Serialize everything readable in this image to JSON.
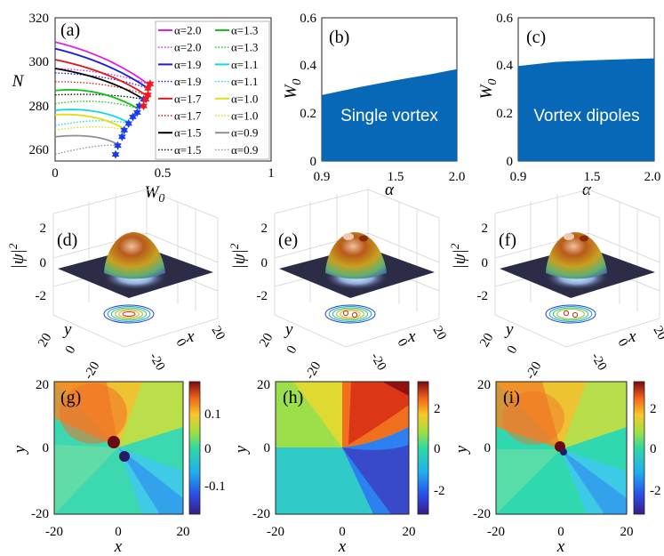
{
  "chart_data": [
    {
      "panel": "(a)",
      "type": "line",
      "xlabel": "W",
      "xlabel_sub": "0",
      "ylabel": "N",
      "xlim": [
        0,
        1
      ],
      "ylim": [
        255,
        320
      ],
      "xticks": [
        "0",
        "0.5",
        "1"
      ],
      "yticks": [
        "260",
        "280",
        "300",
        "320"
      ],
      "legend_left": [
        "α=2.0",
        "α=2.0",
        "α=1.9",
        "α=1.9",
        "α=1.7",
        "α=1.7",
        "α=1.5",
        "α=1.5"
      ],
      "legend_right": [
        "α=1.3",
        "α=1.3",
        "α=1.1",
        "α=1.1",
        "α=1.0",
        "α=1.0",
        "α=0.9",
        "α=0.9"
      ],
      "series": [
        {
          "name": "α=2.0",
          "style": "solid",
          "color": "#e01ee0",
          "x": [
            0,
            0.25,
            0.43
          ],
          "y": [
            309,
            303,
            290
          ]
        },
        {
          "name": "α=2.0",
          "style": "dotted",
          "color": "#e01ee0",
          "x": [
            0,
            0.25,
            0.43
          ],
          "y": [
            297,
            296,
            290
          ]
        },
        {
          "name": "α=1.9",
          "style": "solid",
          "color": "#1a1ae6",
          "x": [
            0,
            0.25,
            0.43
          ],
          "y": [
            306,
            300,
            288
          ]
        },
        {
          "name": "α=1.9",
          "style": "dotted",
          "color": "#1a1ae6",
          "x": [
            0,
            0.25,
            0.43
          ],
          "y": [
            295,
            294,
            288
          ]
        },
        {
          "name": "α=1.7",
          "style": "solid",
          "color": "#e01a1a",
          "x": [
            0,
            0.25,
            0.42
          ],
          "y": [
            301,
            296,
            285
          ]
        },
        {
          "name": "α=1.7",
          "style": "dotted",
          "color": "#e01a1a",
          "x": [
            0,
            0.25,
            0.42
          ],
          "y": [
            291,
            291,
            285
          ]
        },
        {
          "name": "α=1.5",
          "style": "solid",
          "color": "#000000",
          "x": [
            0,
            0.25,
            0.41
          ],
          "y": [
            297,
            293,
            283
          ]
        },
        {
          "name": "α=1.5",
          "style": "dotted",
          "color": "#000000",
          "x": [
            0,
            0.25,
            0.41
          ],
          "y": [
            285,
            286,
            283
          ]
        },
        {
          "name": "α=1.3",
          "style": "solid",
          "color": "#16c016",
          "x": [
            0,
            0.2,
            0.38
          ],
          "y": [
            287,
            289,
            279
          ]
        },
        {
          "name": "α=1.3",
          "style": "dotted",
          "color": "#16c016",
          "x": [
            0,
            0.2,
            0.38
          ],
          "y": [
            281,
            284,
            279
          ]
        },
        {
          "name": "α=1.1",
          "style": "solid",
          "color": "#10d8e8",
          "x": [
            0,
            0.2,
            0.35
          ],
          "y": [
            278,
            280,
            272
          ]
        },
        {
          "name": "α=1.1",
          "style": "dotted",
          "color": "#10d8e8",
          "x": [
            0,
            0.2,
            0.35
          ],
          "y": [
            271,
            275,
            272
          ]
        },
        {
          "name": "α=1.0",
          "style": "solid",
          "color": "#e0e010",
          "x": [
            0,
            0.2,
            0.33
          ],
          "y": [
            276,
            277,
            269
          ]
        },
        {
          "name": "α=1.0",
          "style": "dotted",
          "color": "#e0e010",
          "x": [
            0,
            0.2,
            0.33
          ],
          "y": [
            269,
            272,
            269
          ]
        },
        {
          "name": "α=0.9",
          "style": "solid",
          "color": "#909090",
          "x": [
            0,
            0.2,
            0.3
          ],
          "y": [
            266,
            268,
            262
          ]
        },
        {
          "name": "α=0.9",
          "style": "dotted",
          "color": "#909090",
          "x": [
            0,
            0.2,
            0.3
          ],
          "y": [
            258,
            263,
            262
          ]
        }
      ],
      "markers": {
        "blue_stars": {
          "x": [
            0.28,
            0.29,
            0.31,
            0.32,
            0.34,
            0.36,
            0.38,
            0.39,
            0.41
          ],
          "y": [
            258,
            262,
            266,
            269,
            272,
            275,
            277,
            280,
            283
          ]
        },
        "red_stars": {
          "x": [
            0.41,
            0.42,
            0.43,
            0.43,
            0.44
          ],
          "y": [
            280,
            283,
            285,
            288,
            290
          ]
        }
      },
      "colors": {
        "blue_star": "#1a3cf0",
        "red_star": "#f01a1a"
      }
    },
    {
      "panel": "(b)",
      "type": "area",
      "annotation": "Single vortex",
      "xlabel": "α",
      "ylabel": "W",
      "ylabel_sub": "0",
      "xlim": [
        0.9,
        2.0
      ],
      "ylim": [
        0,
        0.6
      ],
      "xticks": [
        "0.9",
        "1.5",
        "2.0"
      ],
      "yticks": [
        "0",
        "0.2",
        "0.4",
        "0.6"
      ],
      "x": [
        0.9,
        1.2,
        1.5,
        1.8,
        2.0
      ],
      "values": [
        0.276,
        0.309,
        0.338,
        0.365,
        0.385
      ],
      "color": "#0868b8"
    },
    {
      "panel": "(c)",
      "type": "area",
      "annotation": "Vortex dipoles",
      "xlabel": "α",
      "ylabel": "W",
      "ylabel_sub": "0",
      "xlim": [
        0.9,
        2.0
      ],
      "ylim": [
        0,
        0.6
      ],
      "xticks": [
        "0.9",
        "1.5",
        "2.0"
      ],
      "yticks": [
        "0",
        "0.2",
        "0.4",
        "0.6"
      ],
      "x": [
        0.9,
        1.2,
        1.5,
        1.8,
        2.0
      ],
      "values": [
        0.398,
        0.415,
        0.422,
        0.427,
        0.43
      ],
      "color": "#0868b8"
    },
    {
      "panel": "(d)",
      "type": "surface3d",
      "zlabel": "|ψ|",
      "zlabel_sup": "2",
      "xlabel": "x",
      "ylabel": "y",
      "zticks": [
        "2",
        "0",
        "-2"
      ],
      "xticks": [
        "20",
        "0",
        "-20"
      ],
      "yticks": [
        "20",
        "0",
        "-20"
      ],
      "contour_rings": 6
    },
    {
      "panel": "(e)",
      "type": "surface3d",
      "zlabel": "|ψ|",
      "zlabel_sup": "2",
      "xlabel": "x",
      "ylabel": "y",
      "zticks": [
        "2",
        "0",
        "-2"
      ],
      "xticks": [
        "20",
        "0",
        "-20"
      ],
      "yticks": [
        "20",
        "0",
        "-20"
      ],
      "contour_rings": 5
    },
    {
      "panel": "(f)",
      "type": "surface3d",
      "zlabel": "|ψ|",
      "zlabel_sup": "2",
      "xlabel": "x",
      "ylabel": "y",
      "zticks": [
        "2",
        "0",
        "-2"
      ],
      "xticks": [
        "20",
        "0",
        "-20"
      ],
      "yticks": [
        "20",
        "0",
        "-20"
      ],
      "contour_rings": 4
    },
    {
      "panel": "(g)",
      "type": "heatmap",
      "xlabel": "x",
      "ylabel": "y",
      "xlim": [
        -20,
        20
      ],
      "ylim": [
        -20,
        20
      ],
      "xticks": [
        "-20",
        "0",
        "20"
      ],
      "yticks": [
        "20",
        "0",
        "-20"
      ],
      "colorbar_ticks": [
        "0.1",
        "0",
        "-0.1"
      ],
      "clim": [
        -0.17,
        0.17
      ]
    },
    {
      "panel": "(h)",
      "type": "heatmap",
      "xlabel": "x",
      "ylabel": "y",
      "xlim": [
        -20,
        20
      ],
      "ylim": [
        -20,
        20
      ],
      "xticks": [
        "-20",
        "0",
        "20"
      ],
      "yticks": [
        "20",
        "0",
        "-20"
      ],
      "colorbar_ticks": [
        "2",
        "0",
        "-2"
      ],
      "clim": [
        -3.14,
        3.14
      ]
    },
    {
      "panel": "(i)",
      "type": "heatmap",
      "xlabel": "x",
      "ylabel": "y",
      "xlim": [
        -20,
        20
      ],
      "ylim": [
        -20,
        20
      ],
      "xticks": [
        "-20",
        "0",
        "20"
      ],
      "yticks": [
        "20",
        "0",
        "-20"
      ],
      "colorbar_ticks": [
        "2",
        "0",
        "-2"
      ],
      "clim": [
        -3.14,
        3.14
      ]
    }
  ]
}
